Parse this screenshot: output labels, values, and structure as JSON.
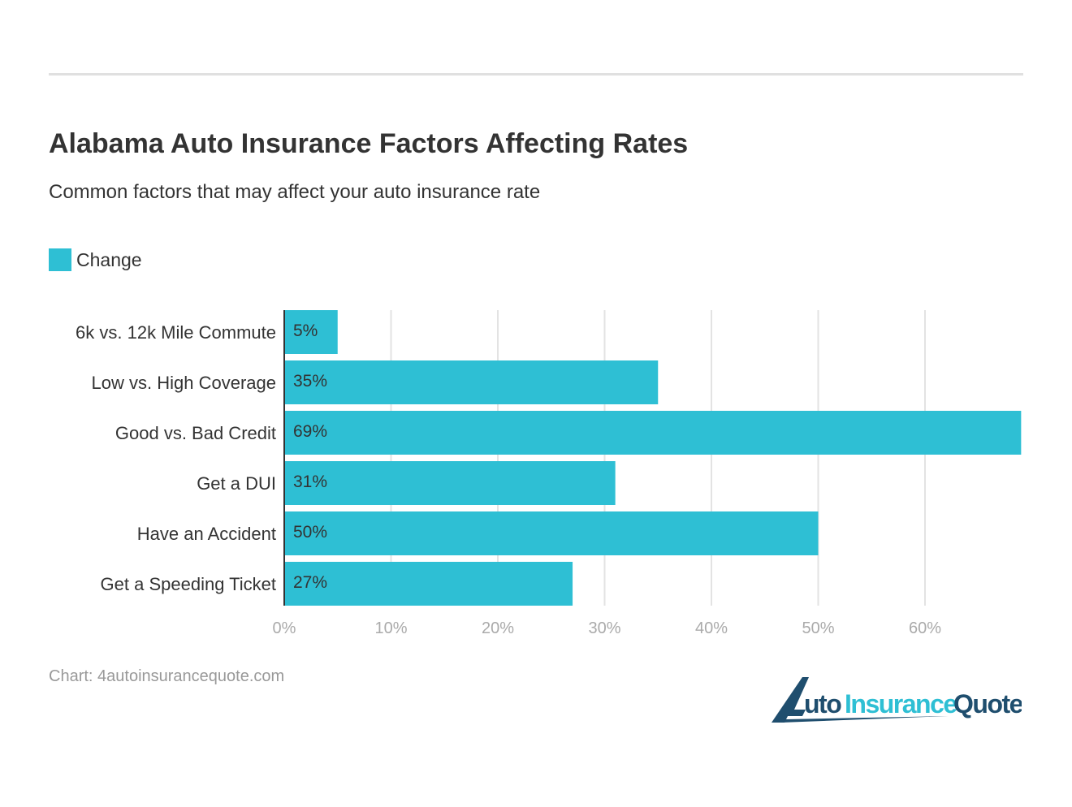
{
  "title": "Alabama Auto Insurance Factors Affecting Rates",
  "subtitle": "Common factors that may affect your auto insurance rate",
  "source": "Chart: 4autoinsurancequote.com",
  "logo_text": "4AutoInsuranceQuote",
  "colors": {
    "bar": "#2ebfd4",
    "logo_dark": "#1f4e6e",
    "logo_light": "#2ebfd4"
  },
  "chart_data": {
    "type": "bar",
    "orientation": "horizontal",
    "title": "Alabama Auto Insurance Factors Affecting Rates",
    "subtitle": "Common factors that may affect your auto insurance rate",
    "categories": [
      "6k vs. 12k Mile Commute",
      "Low vs. High Coverage",
      "Good vs. Bad Credit",
      "Get a DUI",
      "Have an Accident",
      "Get a Speeding Ticket"
    ],
    "series": [
      {
        "name": "Change",
        "values": [
          5,
          35,
          69,
          31,
          50,
          27
        ]
      }
    ],
    "data_labels": [
      "5%",
      "35%",
      "69%",
      "31%",
      "50%",
      "27%"
    ],
    "xlim": [
      0,
      69
    ],
    "xticks": [
      0,
      10,
      20,
      30,
      40,
      50,
      60
    ],
    "xtick_labels": [
      "0%",
      "10%",
      "20%",
      "30%",
      "40%",
      "50%",
      "60%"
    ],
    "grid": true,
    "legend": "top-left"
  }
}
